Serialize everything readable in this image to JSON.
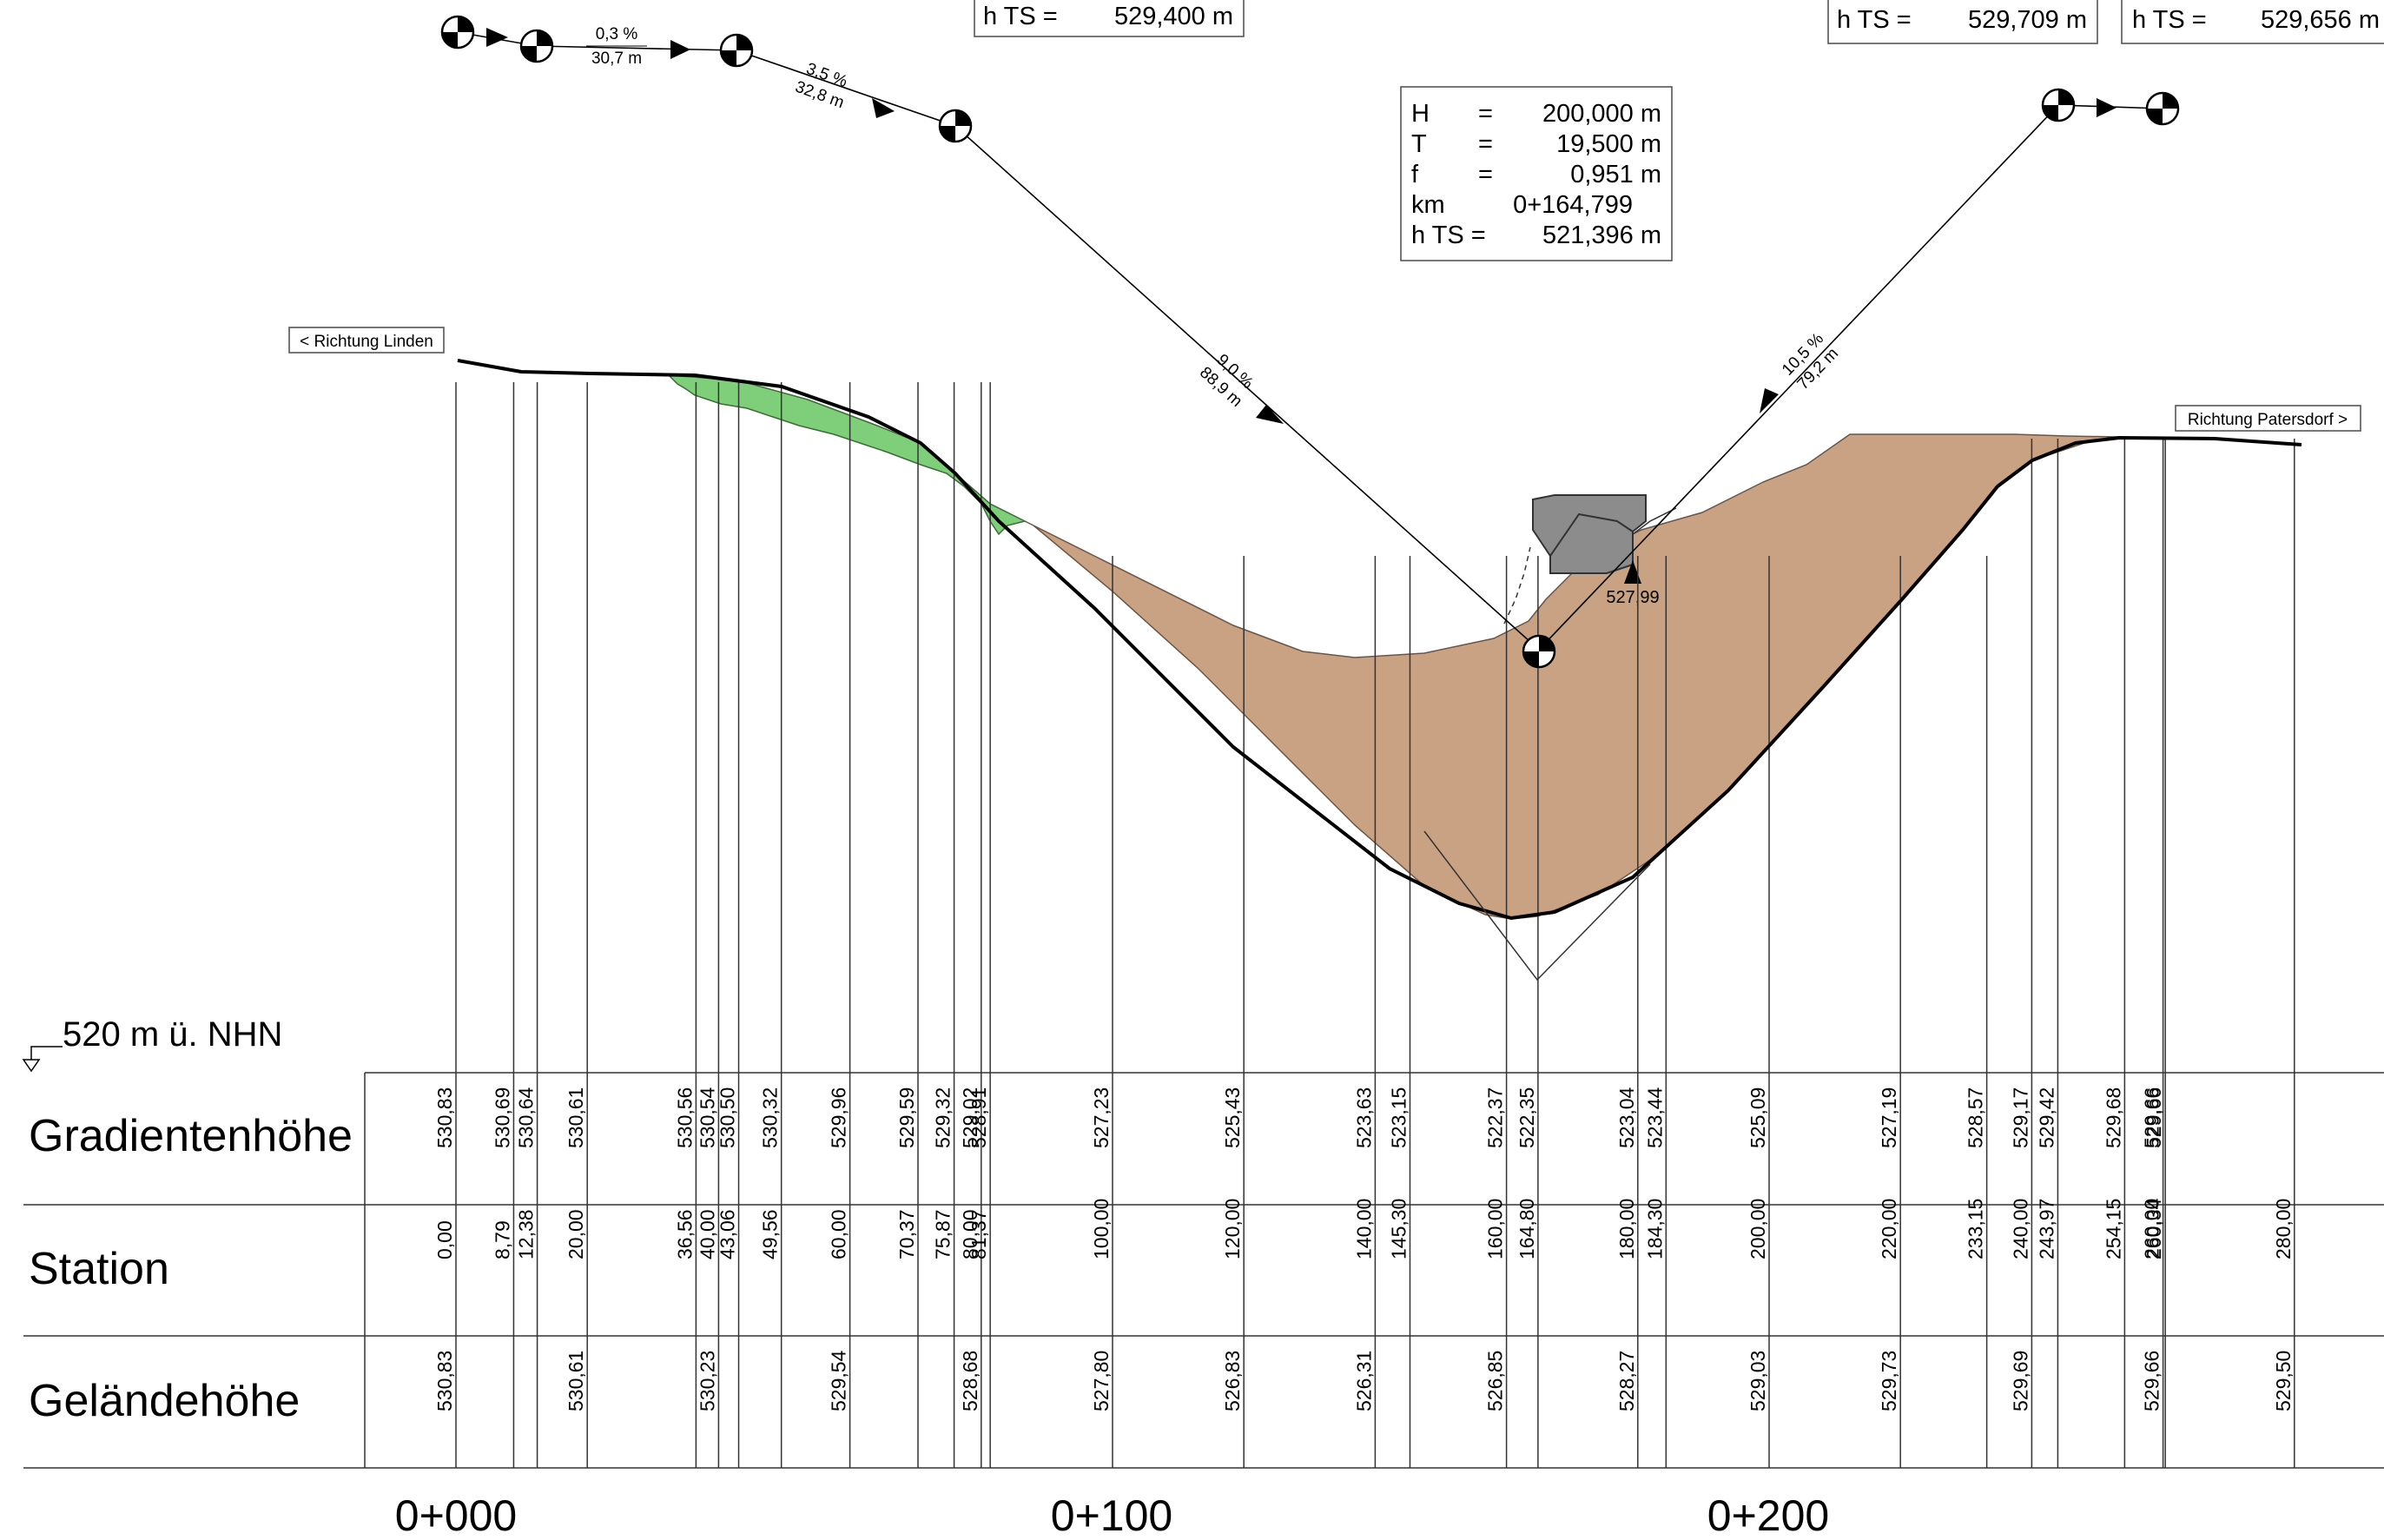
{
  "reference": {
    "label": "520 m ü. NHN"
  },
  "directions": {
    "left": "< Richtung Linden",
    "right": "Richtung Patersdorf >"
  },
  "colors": {
    "fill_cut": "#c8a282",
    "fill_green": "#7fcf7a",
    "bridge": "#8c8c8c",
    "line": "#000000",
    "thin": "#333333"
  },
  "htsTop": [
    {
      "label": "h TS =",
      "value": "529,400 m"
    },
    {
      "label": "h TS =",
      "value": "529,709 m"
    },
    {
      "label": "h TS =",
      "value": "529,656 m"
    }
  ],
  "curveInfo": {
    "rows": [
      {
        "k": "H",
        "eq": "=",
        "v": "200,000 m"
      },
      {
        "k": "T",
        "eq": "=",
        "v": "19,500 m"
      },
      {
        "k": "f",
        "eq": "=",
        "v": "0,951 m"
      },
      {
        "k": "km",
        "eq": "",
        "v": "0+164,799"
      },
      {
        "k": "h TS =",
        "eq": "",
        "v": "521,396 m"
      }
    ]
  },
  "gradients": [
    {
      "pct": "0,3 %",
      "len": "30,7 m"
    },
    {
      "pct": "3,5 %",
      "len": "32,8 m"
    },
    {
      "pct": "9,0 %",
      "len": "88,9 m"
    },
    {
      "pct": "10,5 %",
      "len": "79,2 m"
    }
  ],
  "structure": {
    "height_label": "527,99"
  },
  "bandLabels": {
    "gradient": "Gradientenhöhe",
    "station": "Station",
    "terrain": "Geländehöhe"
  },
  "kmLabels": [
    "0+000",
    "0+100",
    "0+200"
  ],
  "stations": [
    {
      "station": "0,00",
      "grad": "530,83",
      "terrain": "530,83"
    },
    {
      "station": "8,79",
      "grad": "530,69",
      "terrain": ""
    },
    {
      "station": "12,38",
      "grad": "530,64",
      "terrain": ""
    },
    {
      "station": "20,00",
      "grad": "530,61",
      "terrain": "530,61"
    },
    {
      "station": "36,56",
      "grad": "530,56",
      "terrain": ""
    },
    {
      "station": "40,00",
      "grad": "530,54",
      "terrain": "530,23"
    },
    {
      "station": "43,06",
      "grad": "530,50",
      "terrain": ""
    },
    {
      "station": "49,56",
      "grad": "530,32",
      "terrain": ""
    },
    {
      "station": "60,00",
      "grad": "529,96",
      "terrain": "529,54"
    },
    {
      "station": "70,37",
      "grad": "529,59",
      "terrain": ""
    },
    {
      "station": "75,87",
      "grad": "529,32",
      "terrain": ""
    },
    {
      "station": "80,00",
      "grad": "529,02",
      "terrain": "528,68"
    },
    {
      "station": "81,37",
      "grad": "528,91",
      "terrain": ""
    },
    {
      "station": "100,00",
      "grad": "527,23",
      "terrain": "527,80"
    },
    {
      "station": "120,00",
      "grad": "525,43",
      "terrain": "526,83"
    },
    {
      "station": "140,00",
      "grad": "523,63",
      "terrain": "526,31"
    },
    {
      "station": "145,30",
      "grad": "523,15",
      "terrain": ""
    },
    {
      "station": "160,00",
      "grad": "522,37",
      "terrain": "526,85"
    },
    {
      "station": "164,80",
      "grad": "522,35",
      "terrain": ""
    },
    {
      "station": "180,00",
      "grad": "523,04",
      "terrain": "528,27"
    },
    {
      "station": "184,30",
      "grad": "523,44",
      "terrain": ""
    },
    {
      "station": "200,00",
      "grad": "525,09",
      "terrain": "529,03"
    },
    {
      "station": "220,00",
      "grad": "527,19",
      "terrain": "529,73"
    },
    {
      "station": "233,15",
      "grad": "528,57",
      "terrain": ""
    },
    {
      "station": "240,00",
      "grad": "529,17",
      "terrain": "529,69"
    },
    {
      "station": "243,97",
      "grad": "529,42",
      "terrain": ""
    },
    {
      "station": "254,15",
      "grad": "529,68",
      "terrain": ""
    },
    {
      "station": "260,00",
      "grad": "529,66",
      "terrain": "529,66"
    },
    {
      "station": "260,34",
      "grad": "529,66",
      "terrain": ""
    },
    {
      "station": "280,00",
      "grad": "",
      "terrain": "529,50"
    }
  ]
}
